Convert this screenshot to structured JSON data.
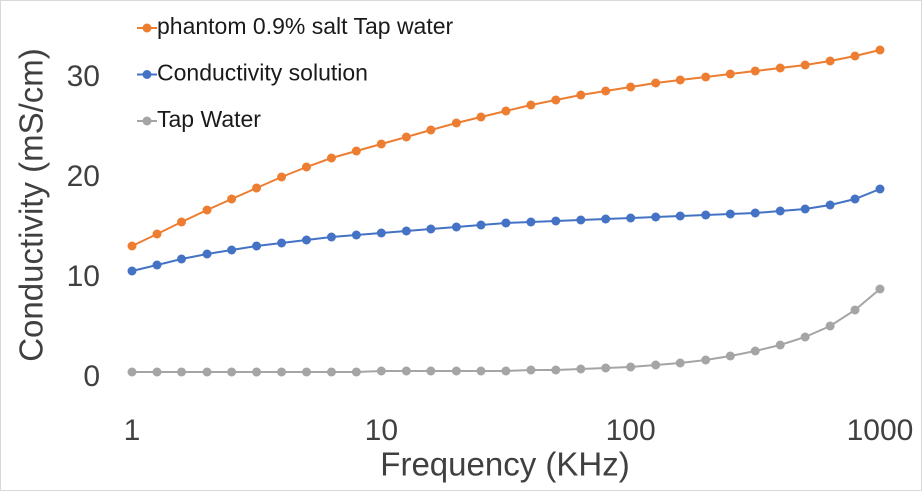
{
  "chart_data": {
    "type": "line",
    "xlabel": "Frequency (KHz)",
    "ylabel": "Conductivity (mS/cm)",
    "x": [
      1,
      1.26,
      1.58,
      2,
      2.51,
      3.16,
      3.98,
      5.01,
      6.31,
      7.94,
      10,
      12.6,
      15.8,
      20,
      25.1,
      31.6,
      39.8,
      50.1,
      63.1,
      79.4,
      100,
      126,
      158,
      200,
      251,
      316,
      398,
      501,
      631,
      794,
      1000
    ],
    "series": [
      {
        "name": "phantom 0.9% salt Tap water",
        "color": "#ed7d31",
        "values": [
          13.2,
          14.4,
          15.6,
          16.8,
          17.9,
          19.0,
          20.1,
          21.1,
          22.0,
          22.7,
          23.4,
          24.1,
          24.8,
          25.5,
          26.1,
          26.7,
          27.3,
          27.8,
          28.3,
          28.7,
          29.1,
          29.5,
          29.8,
          30.1,
          30.4,
          30.7,
          31.0,
          31.3,
          31.7,
          32.2,
          32.8
        ]
      },
      {
        "name": "Conductivity solution",
        "color": "#4472c4",
        "values": [
          10.7,
          11.3,
          11.9,
          12.4,
          12.8,
          13.2,
          13.5,
          13.8,
          14.1,
          14.3,
          14.5,
          14.7,
          14.9,
          15.1,
          15.3,
          15.5,
          15.6,
          15.7,
          15.8,
          15.9,
          16.0,
          16.1,
          16.2,
          16.3,
          16.4,
          16.5,
          16.7,
          16.9,
          17.3,
          17.9,
          18.9
        ]
      },
      {
        "name": "Tap Water",
        "color": "#a5a5a5",
        "values": [
          0.6,
          0.6,
          0.6,
          0.6,
          0.6,
          0.6,
          0.6,
          0.6,
          0.6,
          0.6,
          0.7,
          0.7,
          0.7,
          0.7,
          0.7,
          0.7,
          0.8,
          0.8,
          0.9,
          1.0,
          1.1,
          1.3,
          1.5,
          1.8,
          2.2,
          2.7,
          3.3,
          4.1,
          5.2,
          6.8,
          8.9
        ]
      }
    ],
    "xscale": "log",
    "xlim": [
      1,
      1000
    ],
    "xticks": [
      1,
      10,
      100,
      1000
    ],
    "ylim": [
      0,
      35
    ],
    "yticks": [
      0,
      10,
      20,
      30
    ],
    "grid": false,
    "legend": "upper left"
  }
}
